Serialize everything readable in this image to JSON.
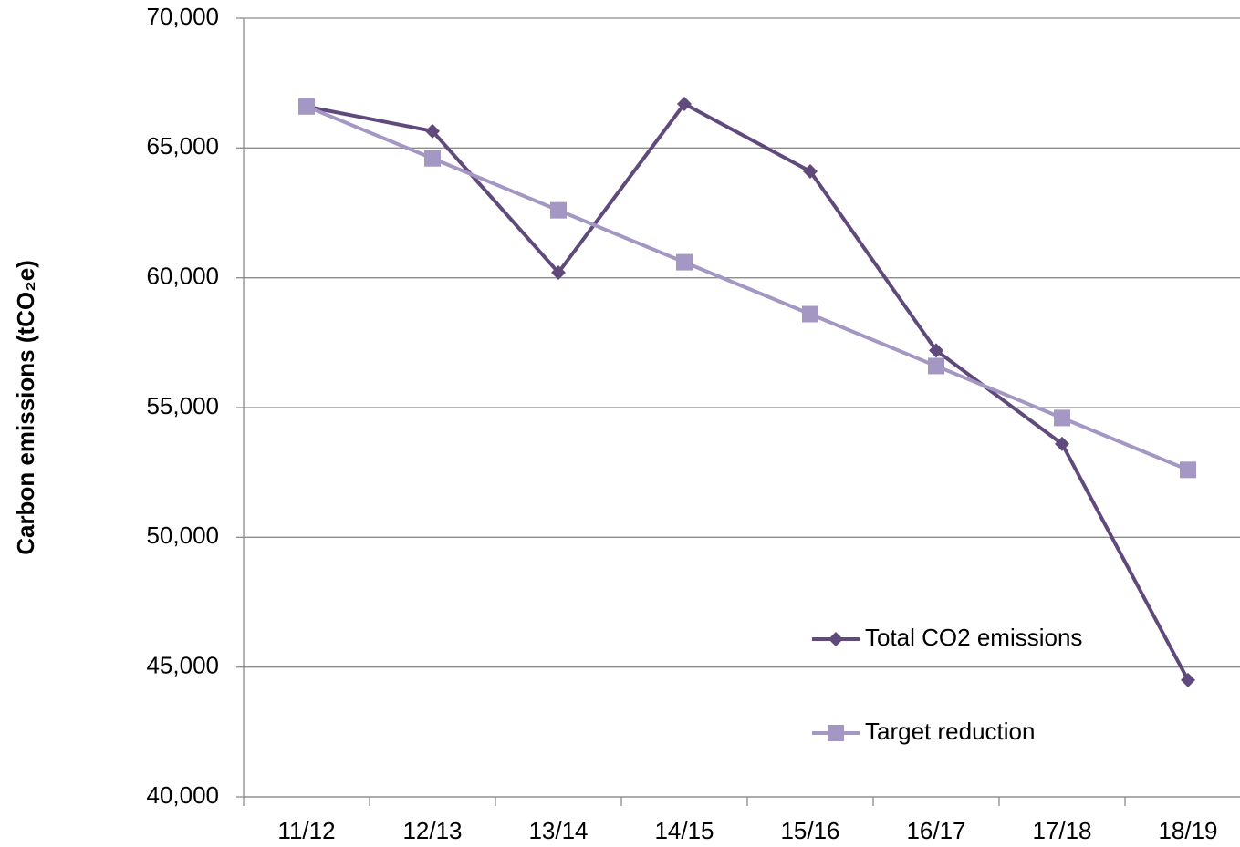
{
  "chart_data": {
    "type": "line",
    "y_label": "Carbon emissions (tCO₂e)",
    "categories": [
      "11/12",
      "12/13",
      "13/14",
      "14/15",
      "15/16",
      "16/17",
      "17/18",
      "18/19"
    ],
    "series": [
      {
        "name": "Total CO2 emissions",
        "color": "#604a7b",
        "marker": "diamond",
        "values": [
          66600,
          65650,
          60200,
          66700,
          64100,
          57200,
          53600,
          44500
        ]
      },
      {
        "name": "Target reduction",
        "color": "#a597c4",
        "marker": "square",
        "values": [
          66600,
          64600,
          62600,
          60600,
          58600,
          56600,
          54600,
          52600
        ]
      }
    ],
    "ylim": [
      40000,
      70000
    ],
    "yticks": [
      {
        "value": 40000,
        "label": "40,000"
      },
      {
        "value": 45000,
        "label": "45,000"
      },
      {
        "value": 50000,
        "label": "50,000"
      },
      {
        "value": 55000,
        "label": "55,000"
      },
      {
        "value": 60000,
        "label": "60,000"
      },
      {
        "value": 65000,
        "label": "65,000"
      },
      {
        "value": 70000,
        "label": "70,000"
      }
    ],
    "grid": true,
    "legend": "lower right"
  }
}
